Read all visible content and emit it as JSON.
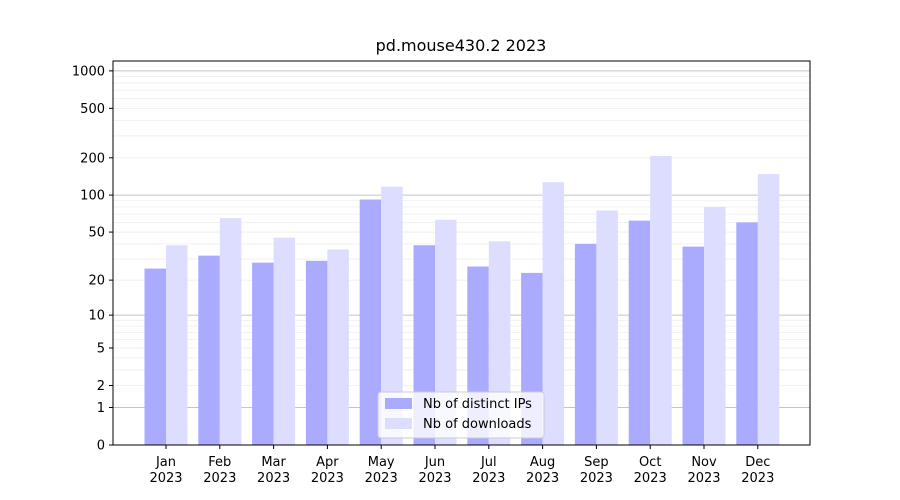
{
  "chart_data": {
    "type": "bar",
    "title": "pd.mouse430.2 2023",
    "xlabel": "",
    "ylabel": "",
    "categories": [
      "Jan\n2023",
      "Feb\n2023",
      "Mar\n2023",
      "Apr\n2023",
      "May\n2023",
      "Jun\n2023",
      "Jul\n2023",
      "Aug\n2023",
      "Sep\n2023",
      "Oct\n2023",
      "Nov\n2023",
      "Dec\n2023"
    ],
    "series": [
      {
        "name": "Nb of distinct IPs",
        "color": "#aaaaff",
        "values": [
          25,
          32,
          28,
          29,
          92,
          39,
          26,
          23,
          40,
          62,
          38,
          60
        ]
      },
      {
        "name": "Nb of downloads",
        "color": "#ddddff",
        "values": [
          39,
          65,
          45,
          36,
          117,
          63,
          42,
          127,
          75,
          207,
          80,
          148
        ]
      }
    ],
    "yscale": "log(1+y)",
    "ylim": [
      0,
      1200
    ],
    "yticks": [
      0,
      1,
      2,
      5,
      10,
      20,
      50,
      100,
      200,
      500,
      1000
    ],
    "legend": "bottom-center",
    "grid": "horizontal"
  }
}
